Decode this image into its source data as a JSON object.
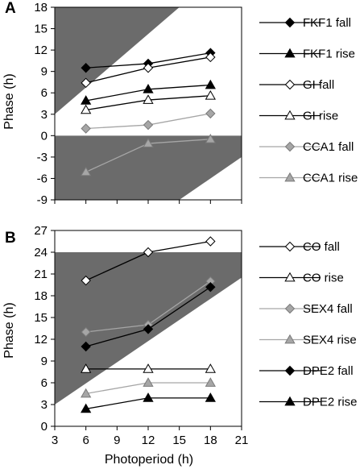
{
  "chart_data": [
    {
      "panel_label": "A",
      "type": "line",
      "xlabel": "",
      "ylabel": "Phase (h)",
      "xlim": [
        3,
        21
      ],
      "ylim": [
        -9,
        18
      ],
      "yticks": [
        "-9",
        "-6",
        "-3",
        "0",
        "3",
        "6",
        "9",
        "12",
        "15",
        "18"
      ],
      "x": [
        6,
        12,
        18
      ],
      "grid": false,
      "legend_position": "right",
      "shading_color": "#6b6b6b",
      "series": [
        {
          "name": "FKF1 fall",
          "values": [
            9.5,
            10.1,
            11.6
          ],
          "marker": "diamond",
          "fill": "#000000",
          "line": "#000000"
        },
        {
          "name": "FKF1 rise",
          "values": [
            4.9,
            6.5,
            7.1
          ],
          "marker": "triangle",
          "fill": "#000000",
          "line": "#000000"
        },
        {
          "name": "GI fall",
          "values": [
            7.4,
            9.5,
            11.0
          ],
          "marker": "diamond",
          "fill": "#ffffff",
          "line": "#000000"
        },
        {
          "name": "GI rise",
          "values": [
            3.6,
            5.0,
            5.6
          ],
          "marker": "triangle",
          "fill": "#ffffff",
          "line": "#000000"
        },
        {
          "name": "CCA1 fall",
          "values": [
            1.0,
            1.5,
            3.1
          ],
          "marker": "diamond",
          "fill": "#a6a6a6",
          "line": "#a6a6a6"
        },
        {
          "name": "CCA1 rise",
          "values": [
            -5.1,
            -1.1,
            -0.5
          ],
          "marker": "triangle",
          "fill": "#a6a6a6",
          "line": "#a6a6a6"
        }
      ]
    },
    {
      "panel_label": "B",
      "type": "line",
      "xlabel": "Photoperiod (h)",
      "ylabel": "Phase (h)",
      "xlim": [
        3,
        21
      ],
      "ylim": [
        0,
        27
      ],
      "xticks": [
        "3",
        "6",
        "9",
        "12",
        "15",
        "18",
        "21"
      ],
      "yticks": [
        "0",
        "3",
        "6",
        "9",
        "12",
        "15",
        "18",
        "21",
        "24",
        "27"
      ],
      "x": [
        6,
        12,
        18
      ],
      "grid": false,
      "legend_position": "right",
      "shading_color": "#6b6b6b",
      "series": [
        {
          "name": "CO fall",
          "values": [
            20.1,
            24.0,
            25.5
          ],
          "marker": "diamond",
          "fill": "#ffffff",
          "line": "#000000"
        },
        {
          "name": "CO rise",
          "values": [
            7.9,
            7.9,
            7.9
          ],
          "marker": "triangle",
          "fill": "#ffffff",
          "line": "#000000"
        },
        {
          "name": "SEX4 fall",
          "values": [
            13.0,
            14.0,
            20.0
          ],
          "marker": "diamond",
          "fill": "#a6a6a6",
          "line": "#a6a6a6"
        },
        {
          "name": "SEX4 rise",
          "values": [
            4.5,
            6.0,
            6.0
          ],
          "marker": "triangle",
          "fill": "#a6a6a6",
          "line": "#a6a6a6"
        },
        {
          "name": "DPE2 fall",
          "values": [
            11.0,
            13.4,
            19.2
          ],
          "marker": "diamond",
          "fill": "#000000",
          "line": "#000000"
        },
        {
          "name": "DPE2 rise",
          "values": [
            2.4,
            3.9,
            3.9
          ],
          "marker": "triangle",
          "fill": "#000000",
          "line": "#000000"
        }
      ]
    }
  ]
}
